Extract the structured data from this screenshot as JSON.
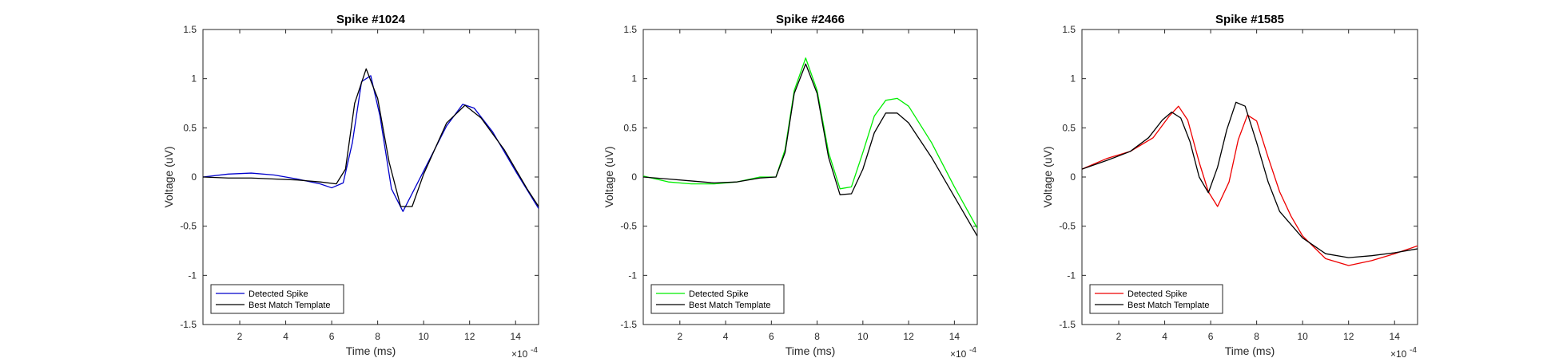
{
  "chart_data": [
    {
      "type": "line",
      "title": "Spike #1024",
      "xlabel": "Time (ms)",
      "ylabel": "Voltage (uV)",
      "x_exponent": "×10",
      "x_exponent_power": "-4",
      "xlim": [
        0.4,
        15
      ],
      "ylim": [
        -1.5,
        1.5
      ],
      "xticks": [
        "2",
        "4",
        "6",
        "8",
        "10",
        "12",
        "14"
      ],
      "xtick_values": [
        2,
        4,
        6,
        8,
        10,
        12,
        14
      ],
      "yticks": [
        "-1.5",
        "-1",
        "-0.5",
        "0",
        "0.5",
        "1",
        "1.5"
      ],
      "ytick_values": [
        -1.5,
        -1,
        -0.5,
        0,
        0.5,
        1,
        1.5
      ],
      "legend_position": "bottom-left",
      "series": [
        {
          "name": "Detected Spike",
          "color": "#0000cc",
          "x": [
            0.4,
            1.5,
            2.5,
            3.5,
            4.5,
            5.5,
            6.0,
            6.5,
            6.9,
            7.3,
            7.7,
            8.1,
            8.6,
            9.1,
            10.0,
            11.0,
            11.7,
            12.2,
            13.0,
            14.0,
            15.0
          ],
          "y": [
            0.0,
            0.03,
            0.04,
            0.02,
            -0.02,
            -0.07,
            -0.11,
            -0.06,
            0.35,
            0.97,
            1.03,
            0.62,
            -0.12,
            -0.35,
            0.06,
            0.52,
            0.74,
            0.7,
            0.46,
            0.06,
            -0.32
          ]
        },
        {
          "name": "Best Match Template",
          "color": "#000000",
          "x": [
            0.4,
            1.5,
            2.5,
            3.5,
            4.5,
            5.5,
            6.2,
            6.6,
            7.0,
            7.5,
            8.0,
            8.5,
            9.0,
            9.5,
            10.0,
            11.0,
            11.8,
            12.5,
            13.5,
            14.5,
            15.0
          ],
          "y": [
            0.0,
            -0.01,
            -0.01,
            -0.02,
            -0.03,
            -0.05,
            -0.07,
            0.08,
            0.75,
            1.1,
            0.8,
            0.15,
            -0.3,
            -0.3,
            0.03,
            0.55,
            0.73,
            0.6,
            0.28,
            -0.12,
            -0.3
          ]
        }
      ]
    },
    {
      "type": "line",
      "title": "Spike #2466",
      "xlabel": "Time (ms)",
      "ylabel": "Voltage (uV)",
      "x_exponent": "×10",
      "x_exponent_power": "-4",
      "xlim": [
        0.4,
        15
      ],
      "ylim": [
        -1.5,
        1.5
      ],
      "xticks": [
        "2",
        "4",
        "6",
        "8",
        "10",
        "12",
        "14"
      ],
      "xtick_values": [
        2,
        4,
        6,
        8,
        10,
        12,
        14
      ],
      "yticks": [
        "-1.5",
        "-1",
        "-0.5",
        "0",
        "0.5",
        "1",
        "1.5"
      ],
      "ytick_values": [
        -1.5,
        -1,
        -0.5,
        0,
        0.5,
        1,
        1.5
      ],
      "legend_position": "bottom-left",
      "series": [
        {
          "name": "Detected Spike",
          "color": "#00ee00",
          "x": [
            0.4,
            1.5,
            2.5,
            3.5,
            4.5,
            5.5,
            6.2,
            6.6,
            7.0,
            7.5,
            8.0,
            8.5,
            9.0,
            9.5,
            10.0,
            10.5,
            11.0,
            11.5,
            12.0,
            13.0,
            14.0,
            15.0
          ],
          "y": [
            0.01,
            -0.05,
            -0.07,
            -0.07,
            -0.05,
            0.0,
            0.0,
            0.28,
            0.88,
            1.21,
            0.88,
            0.25,
            -0.12,
            -0.1,
            0.25,
            0.62,
            0.78,
            0.8,
            0.72,
            0.35,
            -0.1,
            -0.52
          ]
        },
        {
          "name": "Best Match Template",
          "color": "#000000",
          "x": [
            0.4,
            1.5,
            2.5,
            3.5,
            4.5,
            5.5,
            6.2,
            6.6,
            7.0,
            7.5,
            8.0,
            8.5,
            9.0,
            9.5,
            10.0,
            10.5,
            11.0,
            11.5,
            12.0,
            13.0,
            14.0,
            15.0
          ],
          "y": [
            0.0,
            -0.02,
            -0.04,
            -0.06,
            -0.05,
            -0.01,
            0.0,
            0.25,
            0.85,
            1.15,
            0.85,
            0.2,
            -0.18,
            -0.17,
            0.08,
            0.45,
            0.65,
            0.65,
            0.55,
            0.2,
            -0.2,
            -0.6
          ]
        }
      ]
    },
    {
      "type": "line",
      "title": "Spike #1585",
      "xlabel": "Time (ms)",
      "ylabel": "Voltage (uV)",
      "x_exponent": "×10",
      "x_exponent_power": "-4",
      "xlim": [
        0.4,
        15
      ],
      "ylim": [
        -1.5,
        1.5
      ],
      "xticks": [
        "2",
        "4",
        "6",
        "8",
        "10",
        "12",
        "14"
      ],
      "xtick_values": [
        2,
        4,
        6,
        8,
        10,
        12,
        14
      ],
      "yticks": [
        "-1.5",
        "-1",
        "-0.5",
        "0",
        "0.5",
        "1",
        "1.5"
      ],
      "ytick_values": [
        -1.5,
        -1,
        -0.5,
        0,
        0.5,
        1,
        1.5
      ],
      "legend_position": "bottom-left",
      "series": [
        {
          "name": "Detected Spike",
          "color": "#ee0000",
          "x": [
            0.4,
            1.5,
            2.5,
            3.5,
            4.2,
            4.6,
            5.0,
            5.5,
            5.9,
            6.3,
            6.8,
            7.2,
            7.6,
            8.0,
            8.5,
            9.0,
            9.5,
            10.0,
            11.0,
            12.0,
            13.0,
            14.0,
            15.0
          ],
          "y": [
            0.08,
            0.19,
            0.26,
            0.4,
            0.62,
            0.72,
            0.58,
            0.15,
            -0.15,
            -0.3,
            -0.05,
            0.38,
            0.63,
            0.57,
            0.2,
            -0.15,
            -0.4,
            -0.6,
            -0.83,
            -0.9,
            -0.85,
            -0.78,
            -0.7
          ]
        },
        {
          "name": "Best Match Template",
          "color": "#000000",
          "x": [
            0.4,
            1.5,
            2.5,
            3.3,
            3.9,
            4.3,
            4.7,
            5.1,
            5.5,
            5.9,
            6.3,
            6.7,
            7.1,
            7.5,
            8.0,
            8.5,
            9.0,
            10.0,
            11.0,
            12.0,
            13.0,
            14.0,
            15.0
          ],
          "y": [
            0.08,
            0.17,
            0.26,
            0.4,
            0.58,
            0.66,
            0.6,
            0.36,
            0.0,
            -0.16,
            0.1,
            0.48,
            0.76,
            0.72,
            0.35,
            -0.05,
            -0.35,
            -0.62,
            -0.78,
            -0.82,
            -0.8,
            -0.77,
            -0.73
          ]
        }
      ]
    }
  ]
}
